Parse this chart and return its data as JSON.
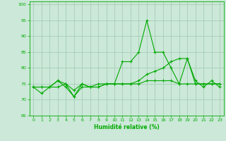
{
  "xlabel": "Humidité relative (%)",
  "background_color": "#cbe8d8",
  "grid_color": "#a0c8b0",
  "line_color": "#00aa00",
  "xlim": [
    -0.5,
    23.5
  ],
  "ylim": [
    65,
    101
  ],
  "yticks": [
    65,
    70,
    75,
    80,
    85,
    90,
    95,
    100
  ],
  "xticks": [
    0,
    1,
    2,
    3,
    4,
    5,
    6,
    7,
    8,
    9,
    10,
    11,
    12,
    13,
    14,
    15,
    16,
    17,
    18,
    19,
    20,
    21,
    22,
    23
  ],
  "series": [
    [
      74,
      72,
      74,
      76,
      74,
      71,
      75,
      74,
      74,
      75,
      75,
      82,
      82,
      85,
      95,
      85,
      85,
      80,
      75,
      83,
      76,
      74,
      76,
      74
    ],
    [
      74,
      74,
      74,
      74,
      75,
      71,
      74,
      74,
      75,
      75,
      75,
      75,
      75,
      75,
      76,
      76,
      76,
      76,
      75,
      75,
      75,
      75,
      75,
      75
    ],
    [
      74,
      74,
      74,
      76,
      75,
      73,
      75,
      74,
      74,
      75,
      75,
      75,
      75,
      76,
      78,
      79,
      80,
      82,
      83,
      83,
      75,
      75,
      75,
      75
    ]
  ]
}
